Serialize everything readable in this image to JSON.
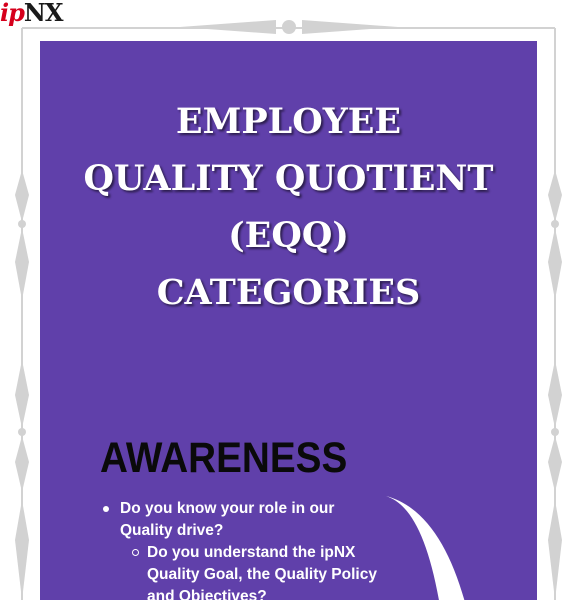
{
  "brand": {
    "logo_prefix": "ip",
    "logo_suffix": "NX"
  },
  "title_lines": [
    "EMPLOYEE",
    "QUALITY QUOTIENT (EQQ)",
    "CATEGORIES"
  ],
  "section": {
    "heading": "AWARENESS",
    "question_1": "Do you know your role in our Quality drive?",
    "question_1_sub": "Do you understand the ipNX Quality Goal, the Quality Policy and Objectives?"
  },
  "colors": {
    "panel": "#6040aa",
    "logo_red": "#d6001c",
    "frame": "#d2d2d2"
  }
}
